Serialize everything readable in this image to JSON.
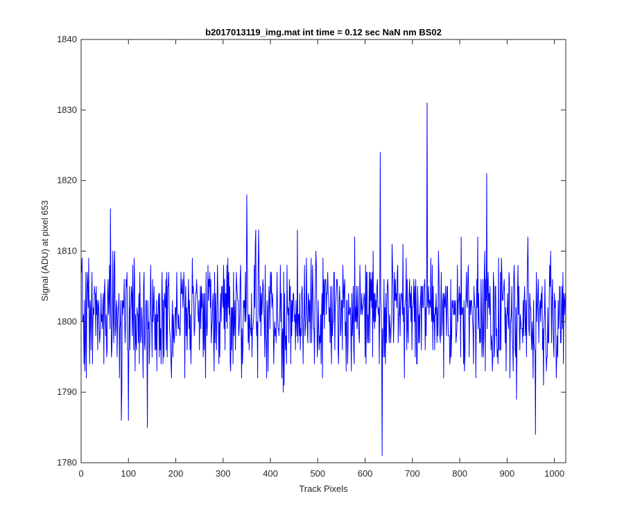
{
  "chart_data": {
    "type": "line",
    "title": "b2017013119_img.mat int time = 0.12 sec  NaN nm BS02",
    "xlabel": "Track Pixels",
    "ylabel": "Signal (ADU) at pixel 653",
    "xlim": [
      0,
      1024
    ],
    "ylim": [
      1780,
      1840
    ],
    "xticks": [
      0,
      100,
      200,
      300,
      400,
      500,
      600,
      700,
      800,
      900,
      1000
    ],
    "yticks": [
      1780,
      1790,
      1800,
      1810,
      1820,
      1830,
      1840
    ],
    "grid": false,
    "series": [
      {
        "color": "#0000ff",
        "x_start": 1,
        "x_step": 1,
        "noise_center": 1801,
        "noise_spread": 4.2,
        "noise_clip": [
          1786,
          1816
        ],
        "noise_seed": 653,
        "notable_points": [
          {
            "x": 62,
            "y": 1816
          },
          {
            "x": 85,
            "y": 1786
          },
          {
            "x": 100,
            "y": 1786
          },
          {
            "x": 140,
            "y": 1785
          },
          {
            "x": 350,
            "y": 1818
          },
          {
            "x": 632,
            "y": 1824
          },
          {
            "x": 636,
            "y": 1781
          },
          {
            "x": 731,
            "y": 1831
          },
          {
            "x": 857,
            "y": 1821
          },
          {
            "x": 960,
            "y": 1784
          }
        ]
      }
    ]
  }
}
